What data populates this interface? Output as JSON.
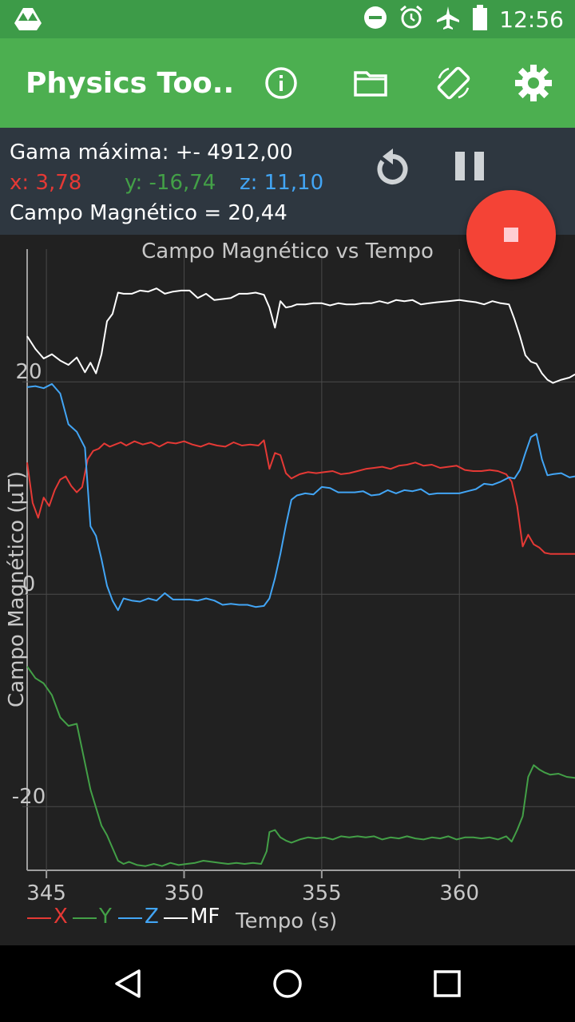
{
  "status_bar": {
    "time": "12:56"
  },
  "app_bar": {
    "title": "Physics Too..."
  },
  "info": {
    "range_label": "Gama máxima: +- 4912,00",
    "x_label": "x: 3,78",
    "y_label": "y: -16,74",
    "z_label": "z: 11,10",
    "field_label": "Campo Magnético =  20,44"
  },
  "colors": {
    "x": "#e53935",
    "y": "#43a047",
    "z": "#42a5f5",
    "mf": "#ffffff",
    "app_bar": "#4caf50",
    "fab": "#f44336"
  },
  "chart_data": {
    "type": "line",
    "title": "Campo Magnético vs Tempo",
    "xlabel": "Tempo (s)",
    "ylabel": "Campo Magnético (µT)",
    "xlim": [
      344.3,
      364.2
    ],
    "ylim": [
      -26,
      32.5
    ],
    "xticks": [
      345,
      350,
      355,
      360
    ],
    "yticks": [
      20,
      0,
      -20
    ],
    "ytick_labels": [
      "20",
      "0",
      "-20"
    ],
    "legend": [
      "X",
      "Y",
      "Z",
      "MF"
    ],
    "legend_position": "bottom-left",
    "grid": true,
    "series": [
      {
        "name": "X",
        "x": [
          344.3,
          344.5,
          344.7,
          344.9,
          345.1,
          345.3,
          345.5,
          345.7,
          345.9,
          346.1,
          346.3,
          346.5,
          346.7,
          346.9,
          347.1,
          347.3,
          347.5,
          347.7,
          347.9,
          348.2,
          348.5,
          348.8,
          349.1,
          349.4,
          349.7,
          350.0,
          350.3,
          350.6,
          350.9,
          351.2,
          351.5,
          351.8,
          352.1,
          352.4,
          352.7,
          352.9,
          353.1,
          353.3,
          353.5,
          353.7,
          353.9,
          354.2,
          354.5,
          354.8,
          355.1,
          355.4,
          355.7,
          356.0,
          356.3,
          356.6,
          356.9,
          357.2,
          357.5,
          357.8,
          358.1,
          358.4,
          358.7,
          359.0,
          359.3,
          359.6,
          359.9,
          360.2,
          360.5,
          360.8,
          361.1,
          361.4,
          361.7,
          361.9,
          362.1,
          362.3,
          362.5,
          362.7,
          362.9,
          363.1,
          363.3,
          363.5,
          363.7,
          364.2
        ],
        "values": [
          12.4,
          8.6,
          7.2,
          9.1,
          8.3,
          9.8,
          10.8,
          11.1,
          10.2,
          9.6,
          10.1,
          12.7,
          13.5,
          13.7,
          14.2,
          13.9,
          14.1,
          14.3,
          14.0,
          14.4,
          14.1,
          14.3,
          13.9,
          14.3,
          14.2,
          14.4,
          14.1,
          13.9,
          14.2,
          14.0,
          13.9,
          14.3,
          14.0,
          14.1,
          14.0,
          14.5,
          11.8,
          13.3,
          13.1,
          11.4,
          10.9,
          11.3,
          11.5,
          11.4,
          11.5,
          11.6,
          11.3,
          11.4,
          11.6,
          11.8,
          11.9,
          12.0,
          11.8,
          12.1,
          12.2,
          12.4,
          12.1,
          12.2,
          11.9,
          12.0,
          12.1,
          11.7,
          11.6,
          11.6,
          11.7,
          11.6,
          11.3,
          10.6,
          8.3,
          4.5,
          5.6,
          4.7,
          4.4,
          3.9,
          3.8,
          3.8,
          3.8,
          3.8
        ]
      },
      {
        "name": "Y",
        "x": [
          344.3,
          344.6,
          344.9,
          345.2,
          345.5,
          345.8,
          346.1,
          346.4,
          346.6,
          346.8,
          347.0,
          347.2,
          347.4,
          347.6,
          347.8,
          348.0,
          348.3,
          348.6,
          348.9,
          349.2,
          349.5,
          349.8,
          350.1,
          350.4,
          350.7,
          351.0,
          351.3,
          351.6,
          351.9,
          352.2,
          352.5,
          352.8,
          353.0,
          353.1,
          353.3,
          353.5,
          353.7,
          353.9,
          354.2,
          354.5,
          354.8,
          355.1,
          355.4,
          355.7,
          356.0,
          356.3,
          356.6,
          356.9,
          357.2,
          357.5,
          357.8,
          358.1,
          358.4,
          358.7,
          359.0,
          359.3,
          359.6,
          359.9,
          360.2,
          360.5,
          360.8,
          361.1,
          361.4,
          361.7,
          361.9,
          362.1,
          362.3,
          362.5,
          362.7,
          362.9,
          363.1,
          363.3,
          363.6,
          363.9,
          364.2
        ],
        "values": [
          -6.8,
          -7.9,
          -8.4,
          -9.5,
          -11.6,
          -12.4,
          -12.2,
          -15.9,
          -18.4,
          -20.1,
          -21.8,
          -22.7,
          -23.9,
          -25.1,
          -25.4,
          -25.2,
          -25.5,
          -25.6,
          -25.4,
          -25.6,
          -25.3,
          -25.5,
          -25.4,
          -25.3,
          -25.1,
          -25.2,
          -25.3,
          -25.4,
          -25.3,
          -25.4,
          -25.3,
          -25.4,
          -24.2,
          -22.4,
          -22.2,
          -22.9,
          -23.2,
          -23.4,
          -23.1,
          -22.9,
          -23.0,
          -22.9,
          -23.1,
          -22.8,
          -22.9,
          -22.8,
          -22.9,
          -22.8,
          -23.1,
          -22.9,
          -23.0,
          -22.8,
          -23.0,
          -23.1,
          -22.9,
          -23.0,
          -22.8,
          -23.1,
          -22.9,
          -22.9,
          -23.0,
          -22.9,
          -23.1,
          -22.8,
          -23.3,
          -22.2,
          -20.9,
          -17.2,
          -16.1,
          -16.5,
          -16.8,
          -17.0,
          -16.9,
          -17.2,
          -17.3
        ]
      },
      {
        "name": "Z",
        "x": [
          344.3,
          344.6,
          344.9,
          345.2,
          345.5,
          345.8,
          346.1,
          346.4,
          346.6,
          346.8,
          347.0,
          347.2,
          347.4,
          347.6,
          347.8,
          348.1,
          348.4,
          348.7,
          349.0,
          349.3,
          349.6,
          349.9,
          350.2,
          350.5,
          350.8,
          351.1,
          351.4,
          351.7,
          352.0,
          352.3,
          352.6,
          352.9,
          353.1,
          353.3,
          353.5,
          353.7,
          353.9,
          354.1,
          354.4,
          354.7,
          355.0,
          355.3,
          355.6,
          355.9,
          356.2,
          356.5,
          356.8,
          357.1,
          357.4,
          357.7,
          358.0,
          358.3,
          358.6,
          358.9,
          359.2,
          359.6,
          360.0,
          360.3,
          360.6,
          360.9,
          361.2,
          361.5,
          361.8,
          362.0,
          362.2,
          362.4,
          362.6,
          362.8,
          363.0,
          363.2,
          363.4,
          363.7,
          364.0,
          364.2
        ],
        "values": [
          19.5,
          19.6,
          19.4,
          19.8,
          18.9,
          16.0,
          15.3,
          13.8,
          6.4,
          5.5,
          3.3,
          0.8,
          -0.6,
          -1.5,
          -0.4,
          -0.6,
          -0.7,
          -0.4,
          -0.6,
          0.1,
          -0.5,
          -0.5,
          -0.5,
          -0.6,
          -0.4,
          -0.6,
          -1.0,
          -0.9,
          -1.0,
          -1.0,
          -1.2,
          -1.1,
          -0.4,
          1.5,
          3.8,
          6.5,
          8.9,
          9.3,
          9.5,
          9.4,
          10.1,
          10.0,
          9.6,
          9.6,
          9.6,
          9.7,
          9.3,
          9.4,
          9.8,
          9.5,
          9.8,
          9.7,
          9.9,
          9.4,
          9.5,
          9.5,
          9.5,
          9.7,
          9.9,
          10.4,
          10.3,
          10.6,
          11.0,
          10.9,
          11.7,
          13.3,
          14.8,
          15.1,
          12.7,
          11.2,
          11.3,
          11.4,
          11.0,
          11.1
        ]
      },
      {
        "name": "MF",
        "x": [
          344.3,
          344.6,
          344.9,
          345.2,
          345.5,
          345.8,
          346.1,
          346.4,
          346.6,
          346.8,
          347.0,
          347.2,
          347.4,
          347.6,
          347.8,
          348.1,
          348.4,
          348.7,
          349.0,
          349.3,
          349.6,
          349.9,
          350.2,
          350.5,
          350.8,
          351.1,
          351.4,
          351.7,
          352.0,
          352.3,
          352.6,
          352.9,
          353.1,
          353.3,
          353.5,
          353.7,
          353.9,
          354.1,
          354.4,
          354.7,
          355.0,
          355.3,
          355.6,
          355.9,
          356.2,
          356.5,
          356.8,
          357.1,
          357.4,
          357.7,
          358.0,
          358.3,
          358.6,
          358.9,
          359.2,
          359.6,
          360.0,
          360.3,
          360.6,
          360.9,
          361.2,
          361.5,
          361.8,
          362.0,
          362.2,
          362.4,
          362.6,
          362.8,
          363.0,
          363.2,
          363.4,
          363.7,
          364.0,
          364.2
        ],
        "values": [
          24.3,
          23.1,
          22.2,
          22.6,
          22.0,
          21.6,
          22.3,
          20.9,
          21.8,
          20.8,
          22.6,
          25.7,
          26.4,
          28.4,
          28.3,
          28.3,
          28.6,
          28.5,
          28.8,
          28.3,
          28.5,
          28.6,
          28.6,
          27.9,
          28.3,
          27.7,
          27.8,
          27.9,
          28.3,
          28.3,
          28.4,
          28.2,
          27.0,
          25.1,
          27.6,
          27.0,
          27.1,
          27.3,
          27.3,
          27.4,
          27.4,
          27.2,
          27.4,
          27.3,
          27.3,
          27.4,
          27.4,
          27.6,
          27.4,
          27.7,
          27.6,
          27.7,
          27.3,
          27.4,
          27.5,
          27.6,
          27.7,
          27.6,
          27.5,
          27.3,
          27.6,
          27.4,
          27.3,
          25.9,
          24.3,
          22.5,
          21.9,
          21.7,
          20.8,
          20.2,
          19.9,
          20.2,
          20.4,
          20.7
        ]
      }
    ]
  }
}
